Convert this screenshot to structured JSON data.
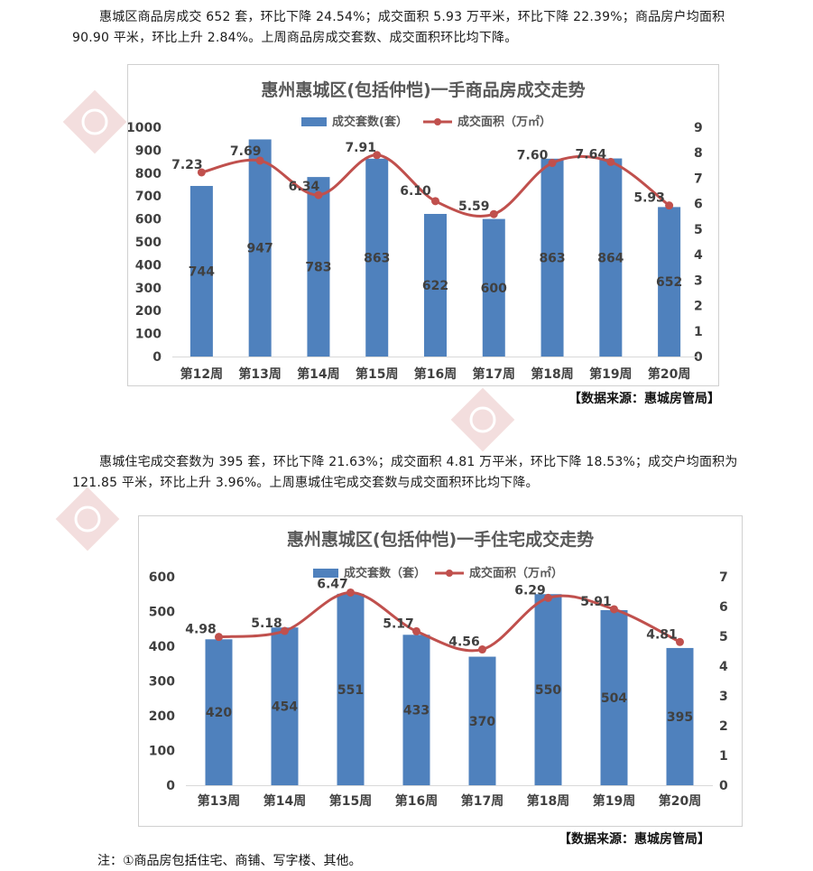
{
  "paragraph1": "惠城区商品房成交 652 套，环比下降 24.54%；成交面积 5.93 万平米，环比下降 22.39%；商品房户均面积 90.90 平米，环比上升 2.84%。上周商品房成交套数、成交面积环比均下降。",
  "paragraph2": "惠城住宅成交套数为 395 套，环比下降 21.63%；成交面积 4.81 万平米，环比下降 18.53%；成交户均面积为 121.85 平米，环比上升 3.96%。上周惠城住宅成交套数与成交面积环比均下降。",
  "source1": "【数据来源：惠城房管局】",
  "source2": "【数据来源：惠城房管局】",
  "note": "注：①商品房包括住宅、商铺、写字楼、其他。",
  "colors": {
    "bar": "#4f81bd",
    "line": "#c0504d"
  },
  "chart_data": [
    {
      "type": "bar",
      "title": "惠州惠城区(包括仲恺)一手商品房成交走势",
      "categories": [
        "第12周",
        "第13周",
        "第14周",
        "第15周",
        "第16周",
        "第17周",
        "第18周",
        "第19周",
        "第20周"
      ],
      "series": [
        {
          "name": "成交套数(套）",
          "type": "bar",
          "axis": "left",
          "values": [
            744,
            947,
            783,
            863,
            622,
            600,
            863,
            864,
            652
          ]
        },
        {
          "name": "成交面积（万㎡）",
          "type": "line",
          "axis": "right",
          "values": [
            7.23,
            7.69,
            6.34,
            7.91,
            6.1,
            5.59,
            7.6,
            7.64,
            5.93
          ]
        }
      ],
      "ylim_left": [
        0,
        1000
      ],
      "yticks_left": [
        0,
        100,
        200,
        300,
        400,
        500,
        600,
        700,
        800,
        900,
        1000
      ],
      "ylim_right": [
        0,
        9
      ],
      "yticks_right": [
        0,
        1,
        2,
        3,
        4,
        5,
        6,
        7,
        8,
        9
      ],
      "legend": "top",
      "grid": false
    },
    {
      "type": "bar",
      "title": "惠州惠城区(包括仲恺)一手住宅成交走势",
      "categories": [
        "第13周",
        "第14周",
        "第15周",
        "第16周",
        "第17周",
        "第18周",
        "第19周",
        "第20周"
      ],
      "series": [
        {
          "name": "成交套数（套）",
          "type": "bar",
          "axis": "left",
          "values": [
            420,
            454,
            551,
            433,
            370,
            550,
            504,
            395
          ]
        },
        {
          "name": "成交面积（万㎡）",
          "type": "line",
          "axis": "right",
          "values": [
            4.98,
            5.18,
            6.47,
            5.17,
            4.56,
            6.29,
            5.91,
            4.81
          ]
        }
      ],
      "ylim_left": [
        0,
        600
      ],
      "yticks_left": [
        0,
        100,
        200,
        300,
        400,
        500,
        600
      ],
      "ylim_right": [
        0,
        7
      ],
      "yticks_right": [
        0,
        1,
        2,
        3,
        4,
        5,
        6,
        7
      ],
      "legend": "top",
      "grid": false
    }
  ]
}
